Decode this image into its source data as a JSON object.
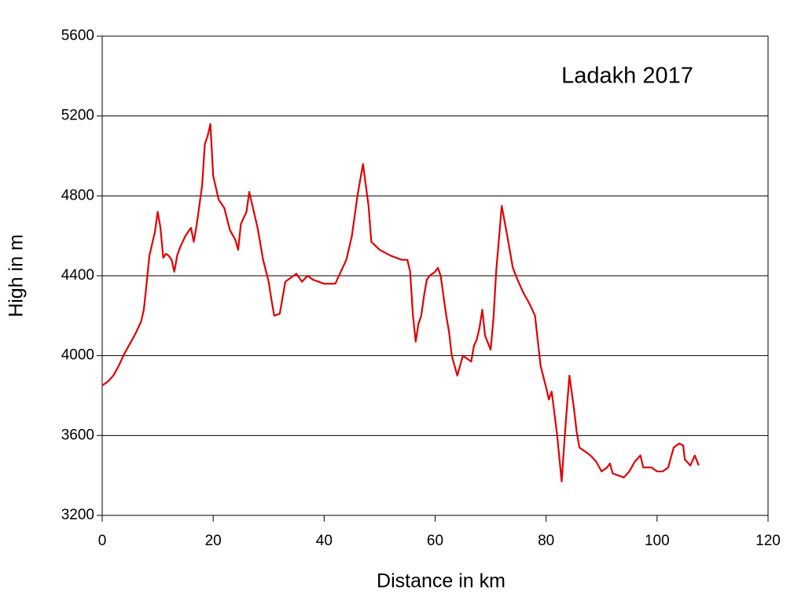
{
  "chart_data": {
    "type": "line",
    "title": "Ladakh 2017",
    "xlabel": "Distance in km",
    "ylabel": "High in m",
    "x": [
      0,
      1,
      2,
      3,
      4,
      5,
      6,
      7,
      7.5,
      8,
      8.5,
      9,
      9.5,
      10,
      10.5,
      11,
      11.5,
      12,
      12.5,
      13,
      13.5,
      14,
      15,
      16,
      16.5,
      17,
      18,
      18.5,
      19,
      19.5,
      20,
      21,
      22,
      23,
      24,
      24.5,
      25,
      26,
      26.5,
      27,
      28,
      29,
      30,
      30.5,
      31,
      32,
      33,
      34,
      35,
      36,
      37,
      38,
      40,
      42,
      43,
      44,
      45,
      46,
      47,
      48,
      48.5,
      50,
      52,
      54,
      55,
      55.5,
      56,
      56.5,
      57,
      57.5,
      58,
      58.5,
      59,
      60,
      60.5,
      61,
      62,
      62.5,
      63,
      64,
      64.5,
      65,
      66,
      66.5,
      67,
      67.5,
      68,
      68.5,
      69,
      70,
      70.5,
      71,
      72,
      73,
      74,
      75,
      76,
      77,
      78,
      79,
      80,
      80.5,
      81,
      82,
      82.8,
      83.5,
      84.2,
      85,
      85.5,
      86,
      87,
      88,
      89,
      90,
      91,
      91.5,
      92,
      93,
      94,
      95,
      96,
      97,
      97.5,
      98,
      99,
      100,
      101,
      102,
      103,
      104,
      104.7,
      105,
      106,
      106.8,
      107.5
    ],
    "series": [
      {
        "color": "#e00000",
        "values": [
          3850,
          3870,
          3900,
          3950,
          4010,
          4060,
          4110,
          4170,
          4230,
          4360,
          4500,
          4560,
          4620,
          4720,
          4640,
          4490,
          4510,
          4500,
          4480,
          4420,
          4500,
          4540,
          4600,
          4640,
          4570,
          4650,
          4850,
          5060,
          5100,
          5160,
          4900,
          4780,
          4740,
          4630,
          4580,
          4530,
          4660,
          4720,
          4820,
          4760,
          4640,
          4480,
          4370,
          4280,
          4200,
          4210,
          4370,
          4390,
          4410,
          4370,
          4400,
          4380,
          4360,
          4360,
          4420,
          4480,
          4600,
          4800,
          4960,
          4750,
          4570,
          4530,
          4500,
          4480,
          4480,
          4420,
          4200,
          4070,
          4160,
          4200,
          4300,
          4380,
          4400,
          4420,
          4440,
          4400,
          4200,
          4120,
          4000,
          3900,
          3950,
          4000,
          3980,
          3970,
          4050,
          4080,
          4140,
          4230,
          4100,
          4030,
          4180,
          4420,
          4750,
          4600,
          4440,
          4370,
          4310,
          4260,
          4200,
          3950,
          3840,
          3780,
          3820,
          3600,
          3370,
          3650,
          3900,
          3740,
          3620,
          3540,
          3520,
          3500,
          3470,
          3420,
          3440,
          3460,
          3410,
          3400,
          3390,
          3420,
          3470,
          3500,
          3440,
          3440,
          3440,
          3420,
          3420,
          3440,
          3540,
          3560,
          3550,
          3480,
          3450,
          3500,
          3450
        ]
      }
    ],
    "xlim": [
      0,
      120
    ],
    "xticks": [
      0,
      20,
      40,
      60,
      80,
      100,
      120
    ],
    "ylim": [
      3200,
      5600
    ],
    "yticks": [
      3200,
      3600,
      4000,
      4400,
      4800,
      5200,
      5600
    ],
    "grid": true
  }
}
